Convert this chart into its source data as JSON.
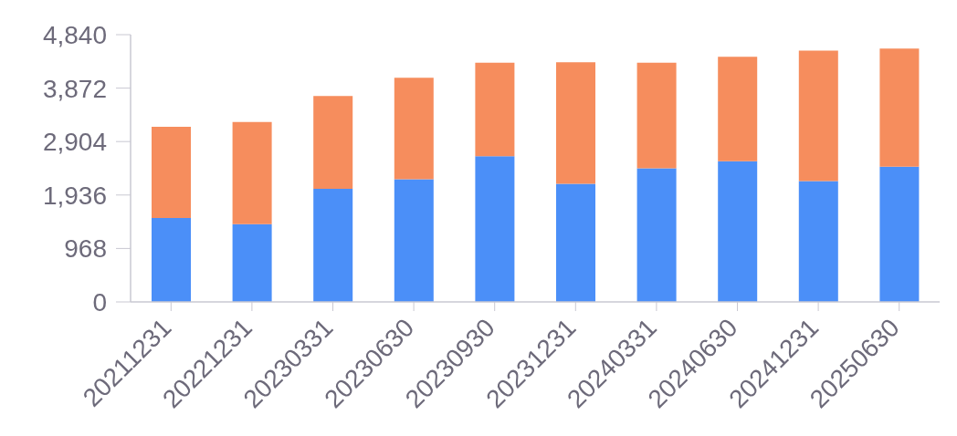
{
  "chart_data": {
    "type": "bar",
    "stacked": true,
    "categories": [
      "20211231",
      "20221231",
      "20230331",
      "20230630",
      "20230930",
      "20231231",
      "20240331",
      "20240630",
      "20241231",
      "20250630"
    ],
    "series": [
      {
        "color": "#4b8ff8",
        "values": [
          1520,
          1410,
          2050,
          2220,
          2640,
          2140,
          2420,
          2550,
          2190,
          2450
        ]
      },
      {
        "color": "#f68d5d",
        "values": [
          1650,
          1850,
          1680,
          1840,
          1690,
          2200,
          1910,
          1890,
          2360,
          2140
        ]
      }
    ],
    "ylim": [
      0,
      4840
    ],
    "yticks": [
      0,
      968,
      {
        "value": 1936,
        "label": "1,936"
      },
      {
        "value": 2904,
        "label": "2,904"
      },
      {
        "value": 3872,
        "label": "3,872"
      },
      {
        "value": 4840,
        "label": "4,840"
      }
    ]
  }
}
